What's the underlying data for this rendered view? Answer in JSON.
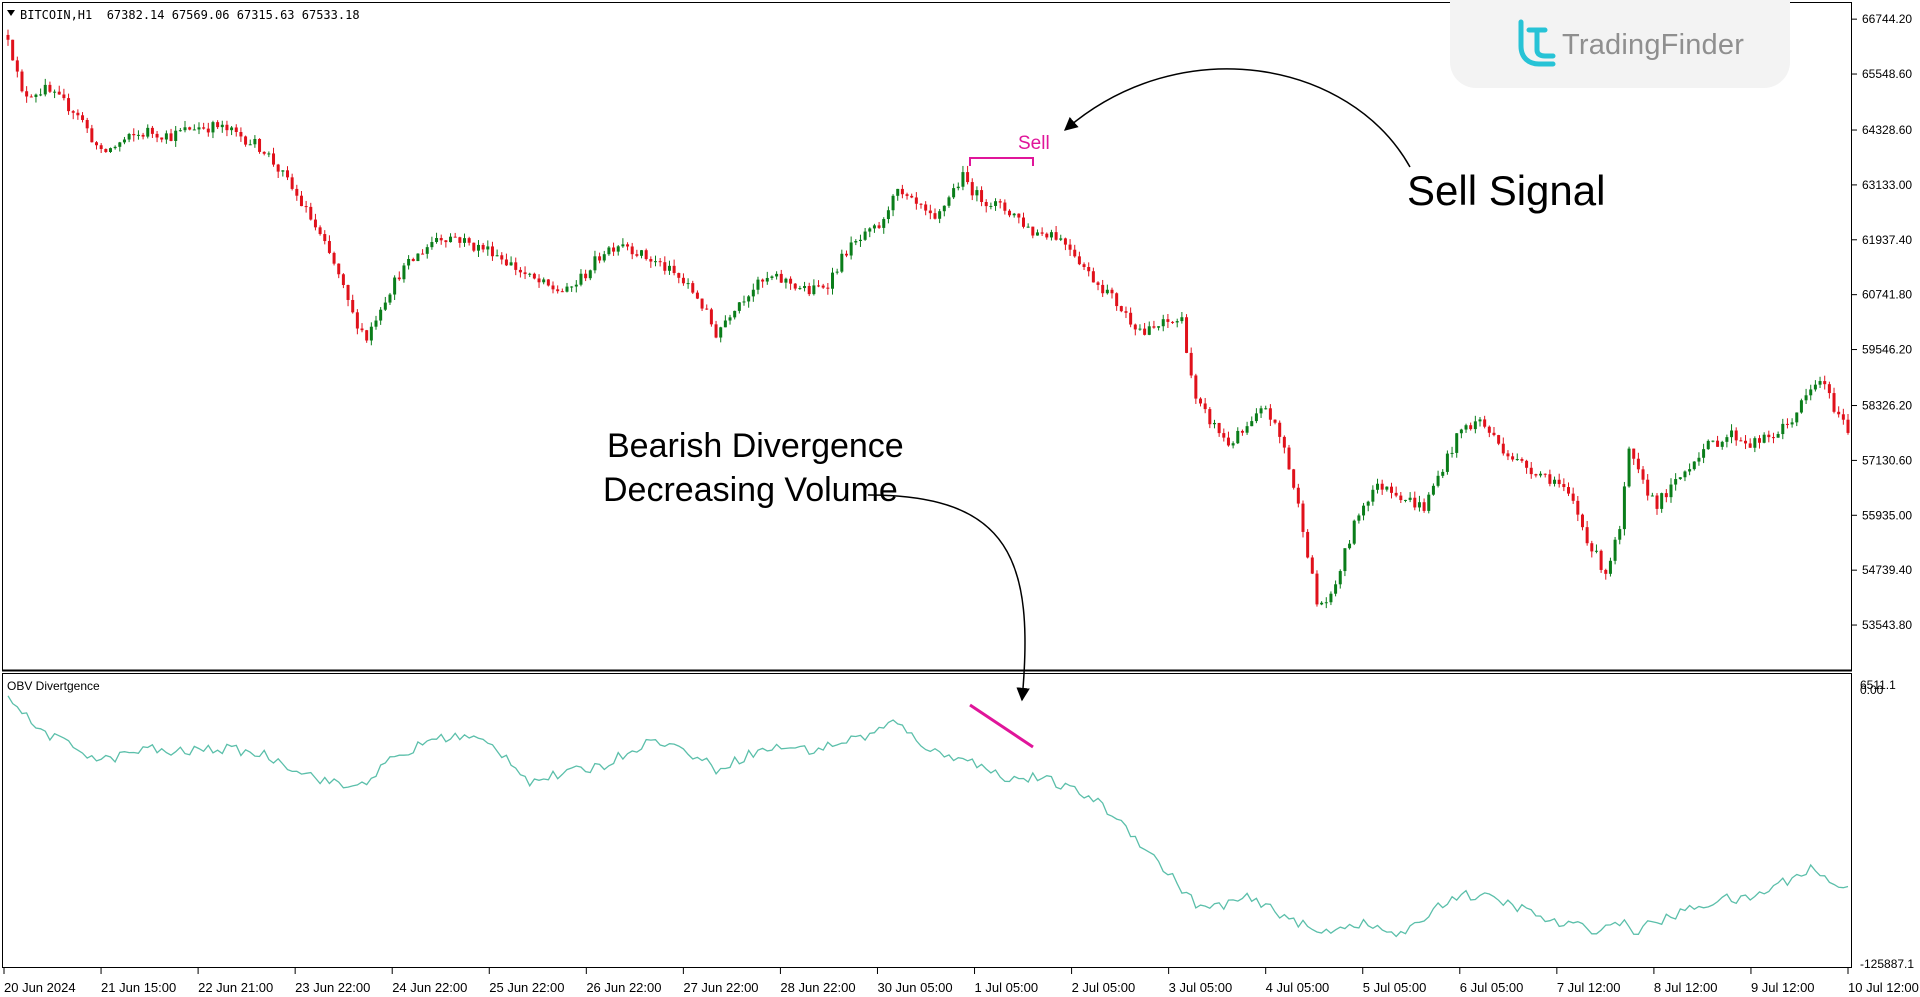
{
  "symbol_header": "BITCOIN,H1  67382.14 67569.06 67315.63 67533.18",
  "watermark": {
    "text": "TradingFinder",
    "icon": "tradingfinder-logo-icon",
    "color": "#8f8f8f"
  },
  "colors": {
    "bull": "#0a7d1a",
    "bear": "#e0111b",
    "obv_line": "#5bbfaa",
    "signal": "#e0159a",
    "text": "#000000"
  },
  "annotations": {
    "sell_label": "Sell",
    "sell_signal": "Sell Signal",
    "divergence_line1": "Bearish Divergence",
    "divergence_line2": "Decreasing Volume"
  },
  "indicator": {
    "name": "OBV Divertgence",
    "top_label": "6511.1",
    "zero_label": "0.00",
    "bottom_label": "-125887.1"
  },
  "chart_data": {
    "type": "candlestick",
    "title": "BITCOIN,H1",
    "ylim": [
      53000,
      66900
    ],
    "price_ticks": [
      "66744.20",
      "65548.60",
      "64328.60",
      "63133.00",
      "61937.40",
      "60741.80",
      "59546.20",
      "58326.20",
      "57130.60",
      "55935.00",
      "54739.40",
      "53543.80"
    ],
    "x_ticks": [
      "20 Jun 2024",
      "21 Jun 15:00",
      "22 Jun 21:00",
      "23 Jun 22:00",
      "24 Jun 22:00",
      "25 Jun 22:00",
      "26 Jun 22:00",
      "27 Jun 22:00",
      "28 Jun 22:00",
      "30 Jun 05:00",
      "1 Jul 05:00",
      "2 Jul 05:00",
      "3 Jul 05:00",
      "4 Jul 05:00",
      "5 Jul 05:00",
      "6 Jul 05:00",
      "7 Jul 12:00",
      "8 Jul 12:00",
      "9 Jul 12:00",
      "10 Jul 12:00"
    ],
    "close_path": [
      [
        0,
        66400
      ],
      [
        3,
        65100
      ],
      [
        8,
        65200
      ],
      [
        15,
        64700
      ],
      [
        20,
        63800
      ],
      [
        25,
        64100
      ],
      [
        30,
        64300
      ],
      [
        35,
        64200
      ],
      [
        40,
        64400
      ],
      [
        45,
        64400
      ],
      [
        50,
        64200
      ],
      [
        55,
        63900
      ],
      [
        60,
        63200
      ],
      [
        65,
        62400
      ],
      [
        70,
        61400
      ],
      [
        74,
        60300
      ],
      [
        77,
        59800
      ],
      [
        80,
        60500
      ],
      [
        84,
        61200
      ],
      [
        88,
        61600
      ],
      [
        92,
        62000
      ],
      [
        96,
        62000
      ],
      [
        100,
        61800
      ],
      [
        104,
        61700
      ],
      [
        108,
        61400
      ],
      [
        112,
        61100
      ],
      [
        116,
        60900
      ],
      [
        120,
        60800
      ],
      [
        124,
        61200
      ],
      [
        128,
        61700
      ],
      [
        132,
        61900
      ],
      [
        136,
        61600
      ],
      [
        140,
        61400
      ],
      [
        144,
        61100
      ],
      [
        148,
        60700
      ],
      [
        152,
        59900
      ],
      [
        156,
        60500
      ],
      [
        160,
        60900
      ],
      [
        164,
        61100
      ],
      [
        168,
        61000
      ],
      [
        172,
        60800
      ],
      [
        176,
        61000
      ],
      [
        180,
        61700
      ],
      [
        184,
        62000
      ],
      [
        188,
        62300
      ],
      [
        190,
        63000
      ],
      [
        193,
        62800
      ],
      [
        196,
        62600
      ],
      [
        199,
        62300
      ],
      [
        202,
        62900
      ],
      [
        205,
        63300
      ],
      [
        208,
        62900
      ],
      [
        212,
        62700
      ],
      [
        216,
        62500
      ],
      [
        220,
        62100
      ],
      [
        224,
        62100
      ],
      [
        228,
        61800
      ],
      [
        232,
        61200
      ],
      [
        236,
        60800
      ],
      [
        240,
        60300
      ],
      [
        244,
        59900
      ],
      [
        248,
        60100
      ],
      [
        252,
        60200
      ],
      [
        255,
        58400
      ],
      [
        258,
        58000
      ],
      [
        262,
        57500
      ],
      [
        266,
        57800
      ],
      [
        270,
        58300
      ],
      [
        274,
        57400
      ],
      [
        278,
        55700
      ],
      [
        281,
        54000
      ],
      [
        284,
        54100
      ],
      [
        287,
        55100
      ],
      [
        290,
        56000
      ],
      [
        293,
        56500
      ],
      [
        296,
        56600
      ],
      [
        300,
        56300
      ],
      [
        304,
        56100
      ],
      [
        308,
        57000
      ],
      [
        312,
        57800
      ],
      [
        316,
        58000
      ],
      [
        320,
        57500
      ],
      [
        324,
        57100
      ],
      [
        328,
        56900
      ],
      [
        332,
        56700
      ],
      [
        336,
        56200
      ],
      [
        340,
        55200
      ],
      [
        343,
        54700
      ],
      [
        346,
        55600
      ],
      [
        348,
        57300
      ],
      [
        351,
        56600
      ],
      [
        354,
        56200
      ],
      [
        357,
        56500
      ],
      [
        360,
        56900
      ],
      [
        363,
        57300
      ],
      [
        366,
        57500
      ],
      [
        370,
        57700
      ],
      [
        374,
        57500
      ],
      [
        378,
        57600
      ],
      [
        382,
        57900
      ],
      [
        386,
        58500
      ],
      [
        389,
        58900
      ],
      [
        392,
        58300
      ],
      [
        395,
        57800
      ]
    ],
    "obv": {
      "ylim": [
        -125887.1,
        6511.1
      ],
      "path": [
        [
          0,
          5000
        ],
        [
          5,
          -10000
        ],
        [
          10,
          -17000
        ],
        [
          15,
          -22000
        ],
        [
          20,
          -28000
        ],
        [
          25,
          -25000
        ],
        [
          30,
          -22000
        ],
        [
          35,
          -24000
        ],
        [
          40,
          -23000
        ],
        [
          45,
          -22000
        ],
        [
          50,
          -23000
        ],
        [
          55,
          -25000
        ],
        [
          60,
          -30000
        ],
        [
          65,
          -35000
        ],
        [
          70,
          -39000
        ],
        [
          74,
          -41000
        ],
        [
          78,
          -36000
        ],
        [
          82,
          -28000
        ],
        [
          86,
          -24000
        ],
        [
          90,
          -18000
        ],
        [
          95,
          -16000
        ],
        [
          100,
          -17000
        ],
        [
          104,
          -21000
        ],
        [
          108,
          -28000
        ],
        [
          112,
          -38000
        ],
        [
          116,
          -36000
        ],
        [
          120,
          -34000
        ],
        [
          124,
          -32000
        ],
        [
          128,
          -30000
        ],
        [
          132,
          -25000
        ],
        [
          136,
          -20000
        ],
        [
          140,
          -18000
        ],
        [
          144,
          -22000
        ],
        [
          148,
          -26000
        ],
        [
          152,
          -32000
        ],
        [
          156,
          -28000
        ],
        [
          160,
          -24000
        ],
        [
          164,
          -22000
        ],
        [
          168,
          -21000
        ],
        [
          172,
          -23000
        ],
        [
          176,
          -21000
        ],
        [
          180,
          -18000
        ],
        [
          184,
          -16000
        ],
        [
          188,
          -12000
        ],
        [
          190,
          -9000
        ],
        [
          193,
          -14000
        ],
        [
          196,
          -19000
        ],
        [
          199,
          -24000
        ],
        [
          202,
          -26000
        ],
        [
          205,
          -25000
        ],
        [
          208,
          -30000
        ],
        [
          212,
          -34000
        ],
        [
          216,
          -37000
        ],
        [
          220,
          -36000
        ],
        [
          224,
          -38000
        ],
        [
          228,
          -42000
        ],
        [
          232,
          -45000
        ],
        [
          236,
          -52000
        ],
        [
          240,
          -60000
        ],
        [
          244,
          -70000
        ],
        [
          248,
          -80000
        ],
        [
          252,
          -90000
        ],
        [
          255,
          -98000
        ],
        [
          258,
          -100000
        ],
        [
          262,
          -97000
        ],
        [
          266,
          -95000
        ],
        [
          270,
          -99000
        ],
        [
          274,
          -103000
        ],
        [
          278,
          -108000
        ],
        [
          281,
          -112000
        ],
        [
          284,
          -110000
        ],
        [
          287,
          -108000
        ],
        [
          290,
          -107000
        ],
        [
          293,
          -109000
        ],
        [
          296,
          -111000
        ],
        [
          300,
          -113000
        ],
        [
          304,
          -104000
        ],
        [
          308,
          -97000
        ],
        [
          312,
          -93000
        ],
        [
          316,
          -94000
        ],
        [
          320,
          -96000
        ],
        [
          324,
          -99000
        ],
        [
          328,
          -103000
        ],
        [
          332,
          -107000
        ],
        [
          336,
          -108000
        ],
        [
          340,
          -110000
        ],
        [
          343,
          -109000
        ],
        [
          346,
          -106000
        ],
        [
          349,
          -111000
        ],
        [
          352,
          -108000
        ],
        [
          356,
          -105000
        ],
        [
          360,
          -101000
        ],
        [
          364,
          -98000
        ],
        [
          368,
          -95000
        ],
        [
          372,
          -96000
        ],
        [
          376,
          -93000
        ],
        [
          380,
          -88000
        ],
        [
          384,
          -84000
        ],
        [
          387,
          -80000
        ],
        [
          390,
          -85000
        ],
        [
          395,
          -91000
        ]
      ]
    },
    "signals": [
      {
        "label": "Sell",
        "price_level": 63300
      }
    ]
  }
}
